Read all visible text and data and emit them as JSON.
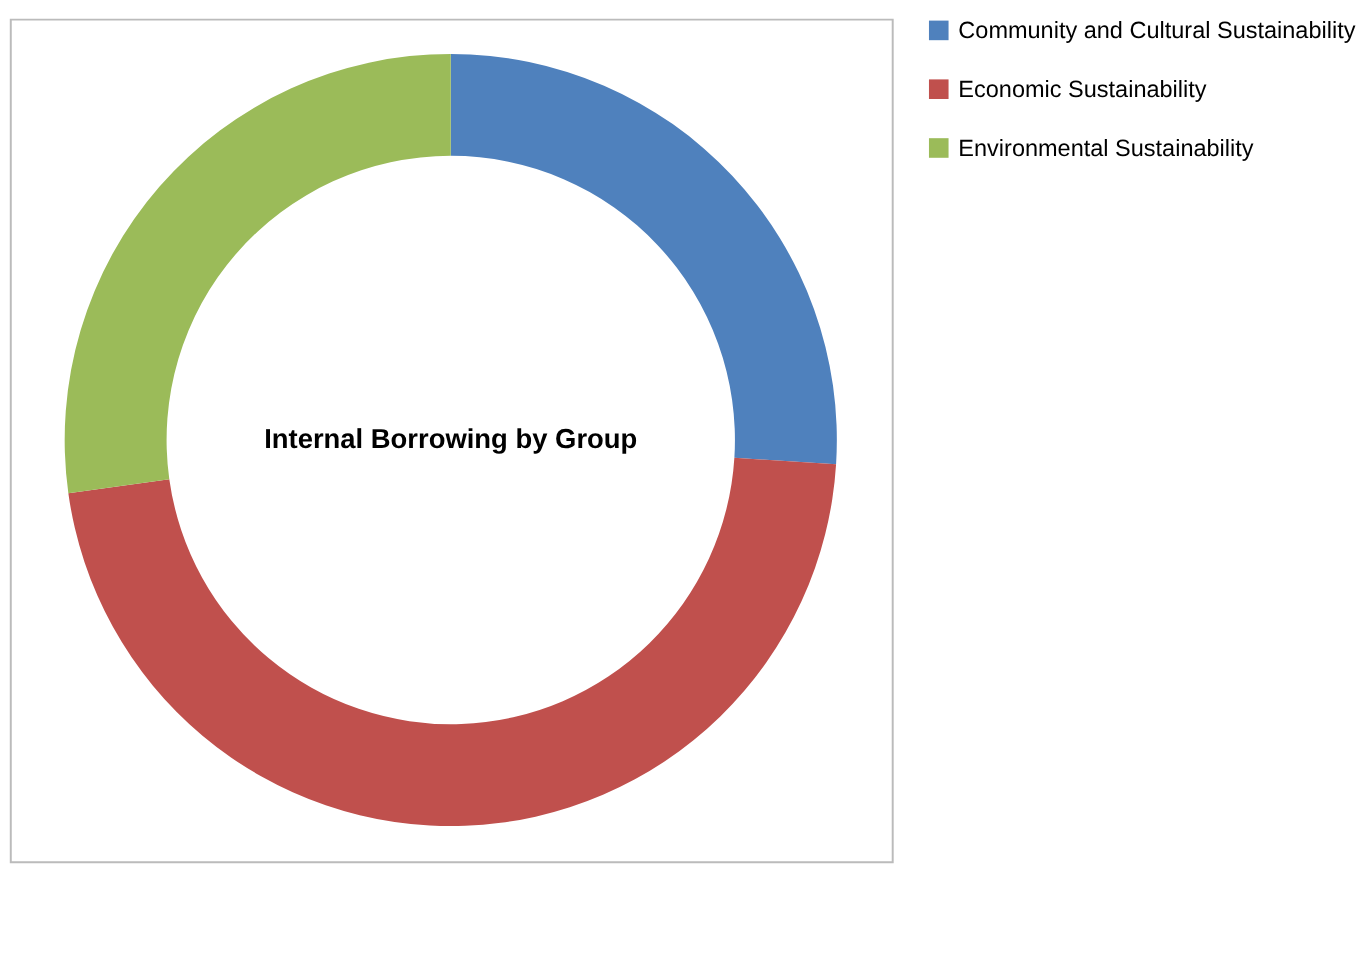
{
  "chart_data": {
    "type": "donut",
    "title": "Internal Borrowing by Group",
    "categories": [
      "Community and Cultural Sustainability",
      "Economic Sustainability",
      "Environmental Sustainability"
    ],
    "values": [
      26,
      46.8,
      27.2
    ],
    "colors": [
      "#4f81bd",
      "#c0504d",
      "#9bbb59"
    ],
    "legend": "right"
  }
}
